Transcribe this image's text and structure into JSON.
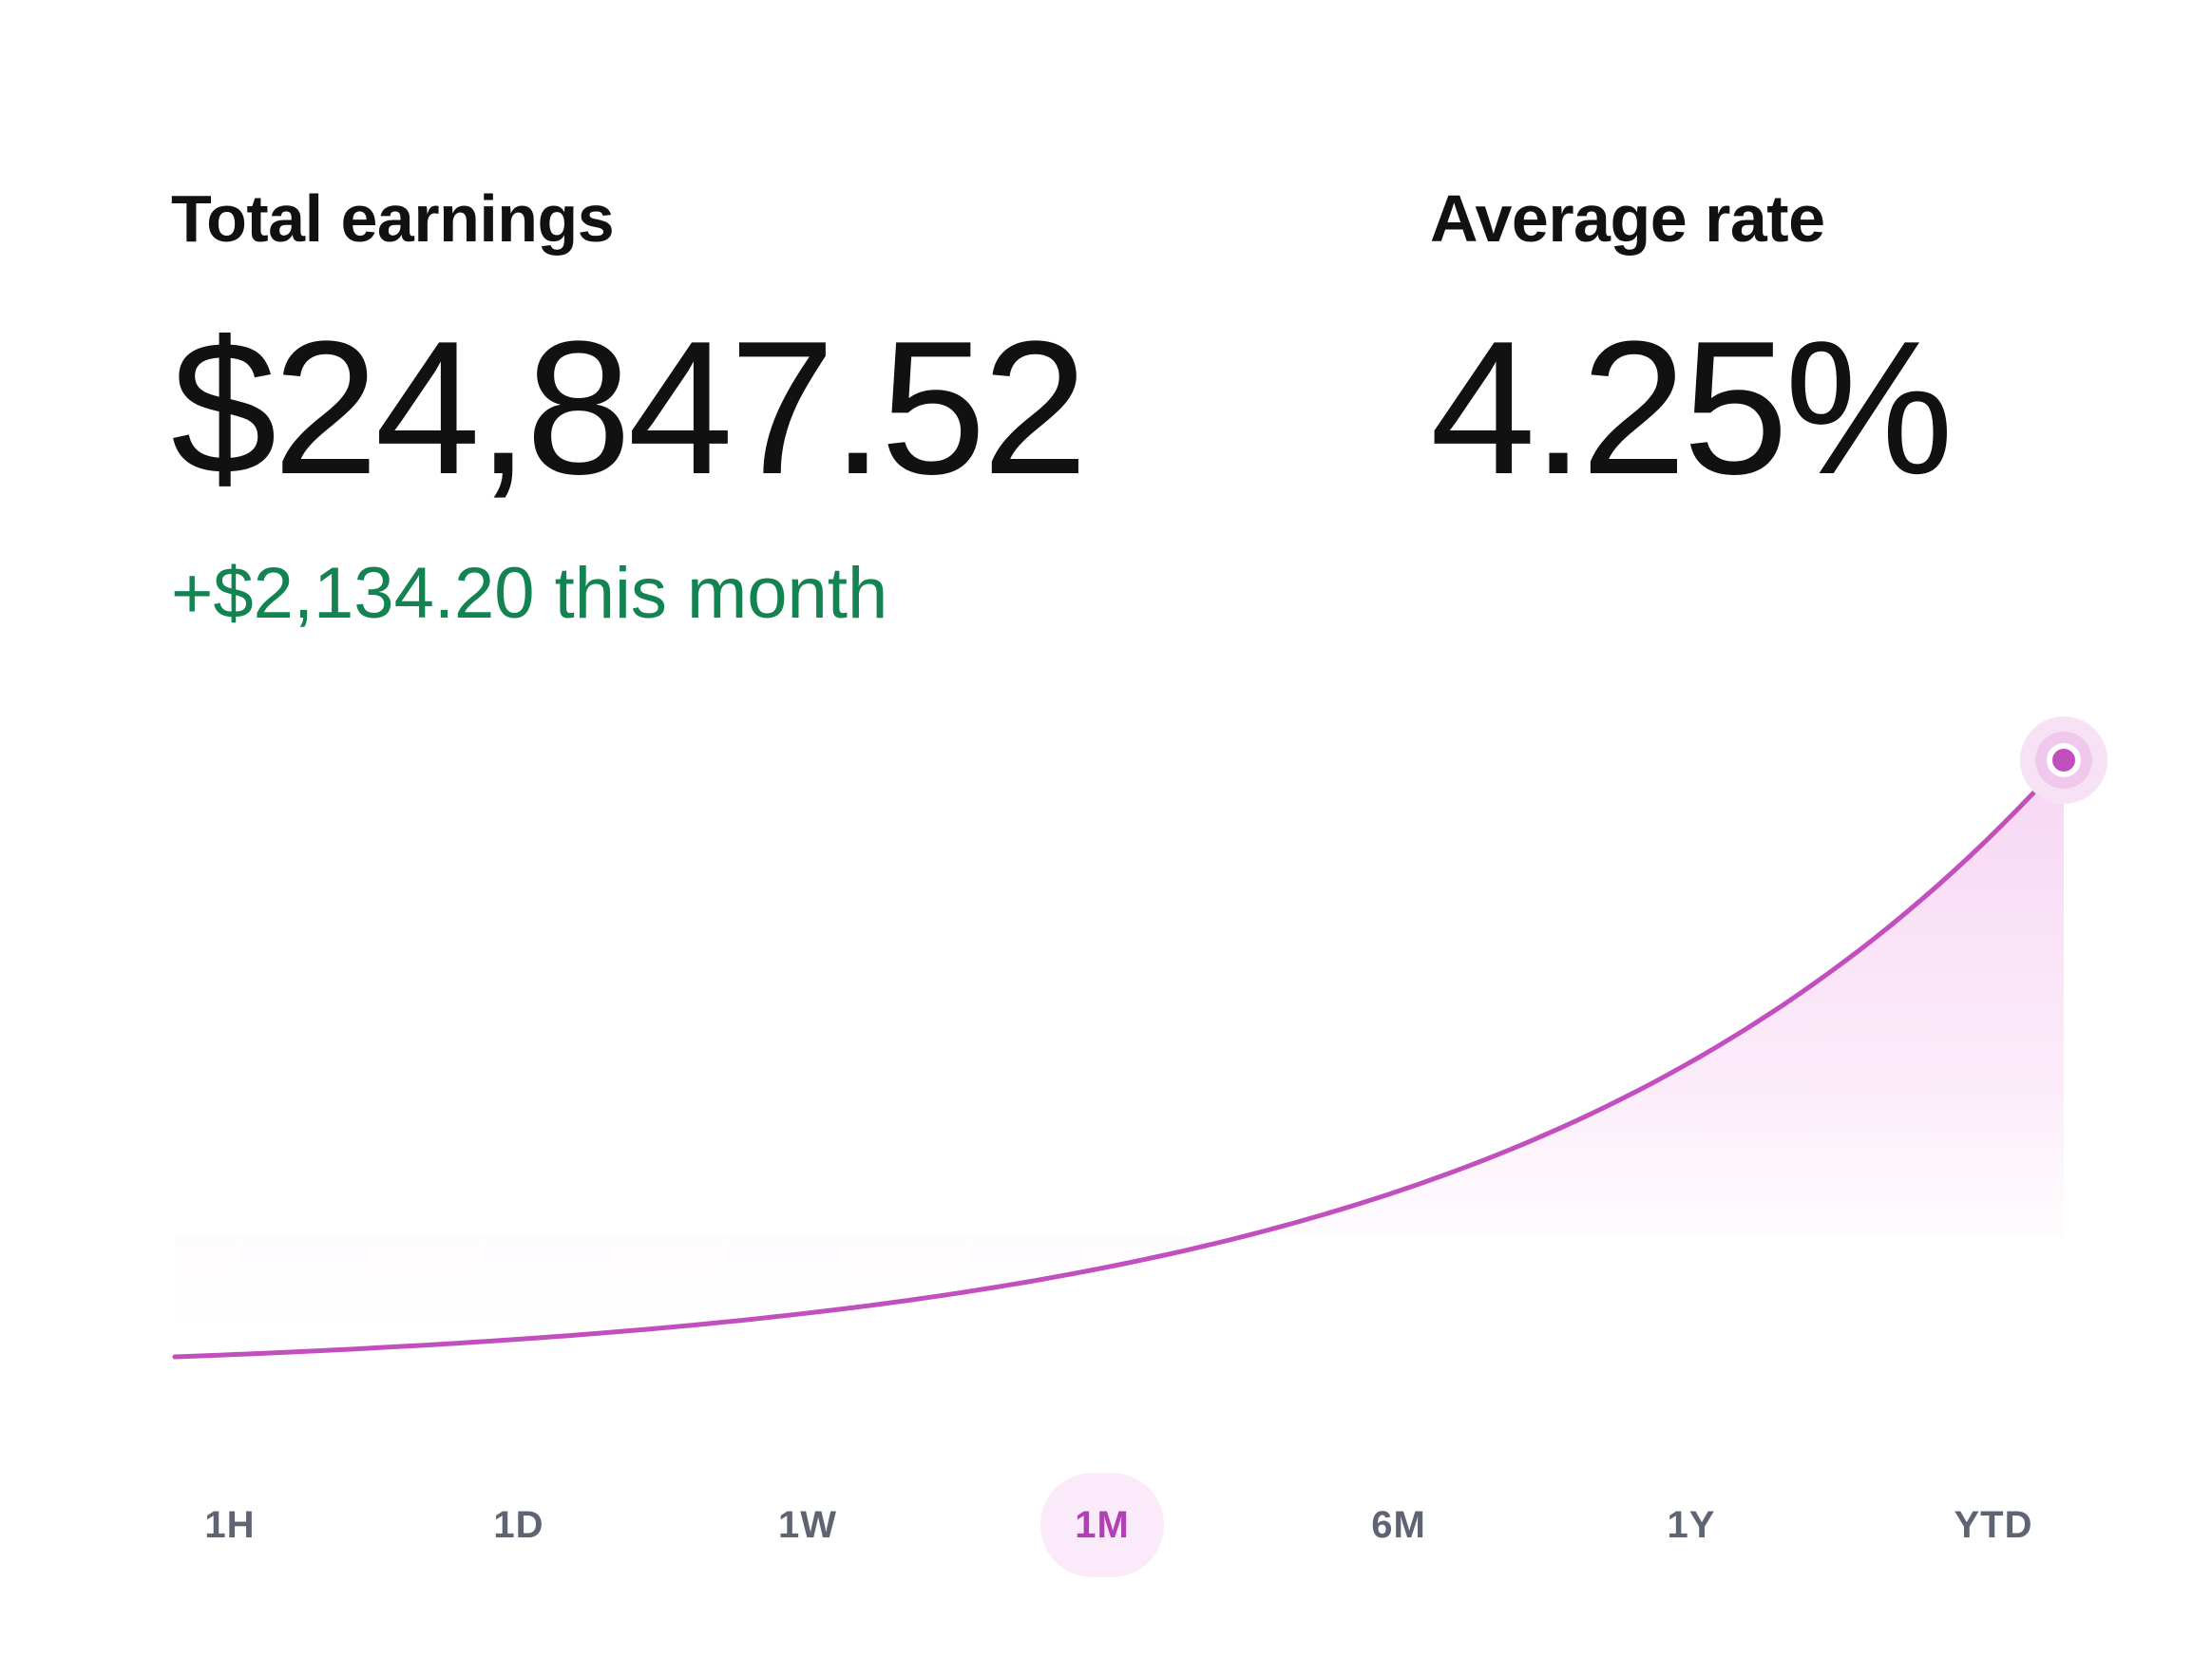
{
  "summary": {
    "earnings_label": "Total earnings",
    "earnings_value": "$24,847.52",
    "earnings_change": "+$2,134.20 this month",
    "rate_label": "Average rate",
    "rate_value": "4.25%"
  },
  "time_ranges": [
    {
      "label": "1H",
      "active": false
    },
    {
      "label": "1D",
      "active": false
    },
    {
      "label": "1W",
      "active": false
    },
    {
      "label": "1M",
      "active": true
    },
    {
      "label": "6M",
      "active": false
    },
    {
      "label": "1Y",
      "active": false
    },
    {
      "label": "YTD",
      "active": false
    }
  ],
  "colors": {
    "line": "#c14fbd",
    "fill": "#f6d6f3",
    "change_positive": "#138451",
    "active_tab_bg": "#fbeafa",
    "active_tab_text": "#b23fb5",
    "tab_text": "#5f6473"
  },
  "chart_data": {
    "type": "area",
    "shape": "exponential growth curve",
    "endpoint_marker": true
  }
}
